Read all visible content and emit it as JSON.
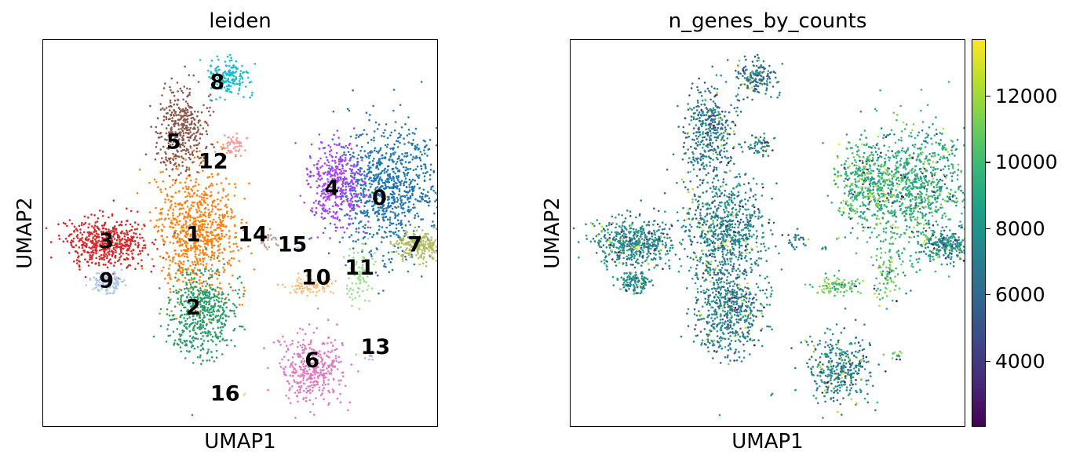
{
  "chart_data": [
    {
      "type": "scatter",
      "title": "leiden",
      "xlabel": "UMAP1",
      "ylabel": "UMAP2",
      "legend": "on-data cluster labels",
      "grid": false,
      "clusters": [
        {
          "name": "0",
          "color": "#1f77b4",
          "cx": 8.2,
          "cy": 6.4,
          "rx": 1.3,
          "ry": 1.9,
          "n": 900
        },
        {
          "name": "1",
          "color": "#ff7f0e",
          "cx": 3.4,
          "cy": 5.2,
          "rx": 1.0,
          "ry": 1.8,
          "n": 800
        },
        {
          "name": "2",
          "color": "#279e68",
          "cx": 3.5,
          "cy": 2.7,
          "rx": 0.8,
          "ry": 1.3,
          "n": 520
        },
        {
          "name": "3",
          "color": "#d62728",
          "cx": 1.1,
          "cy": 4.8,
          "rx": 1.0,
          "ry": 0.7,
          "n": 520
        },
        {
          "name": "4",
          "color": "#aa40fc",
          "cx": 6.9,
          "cy": 6.6,
          "rx": 0.7,
          "ry": 1.2,
          "n": 380
        },
        {
          "name": "5",
          "color": "#8c564b",
          "cx": 3.0,
          "cy": 8.2,
          "rx": 0.6,
          "ry": 1.3,
          "n": 380
        },
        {
          "name": "6",
          "color": "#e377c2",
          "cx": 6.3,
          "cy": 1.0,
          "rx": 0.8,
          "ry": 1.0,
          "n": 360
        },
        {
          "name": "7",
          "color": "#b5bd61",
          "cx": 9.0,
          "cy": 4.7,
          "rx": 0.6,
          "ry": 0.4,
          "n": 240
        },
        {
          "name": "8",
          "color": "#17becf",
          "cx": 4.2,
          "cy": 9.8,
          "rx": 0.5,
          "ry": 0.5,
          "n": 170
        },
        {
          "name": "9",
          "color": "#aec7e8",
          "cx": 1.1,
          "cy": 3.6,
          "rx": 0.4,
          "ry": 0.3,
          "n": 120
        },
        {
          "name": "10",
          "color": "#ffbb78",
          "cx": 6.2,
          "cy": 3.5,
          "rx": 0.6,
          "ry": 0.3,
          "n": 90
        },
        {
          "name": "11",
          "color": "#98df8a",
          "cx": 7.5,
          "cy": 3.8,
          "rx": 0.3,
          "ry": 1.0,
          "n": 90
        },
        {
          "name": "12",
          "color": "#ff9896",
          "cx": 4.3,
          "cy": 7.7,
          "rx": 0.3,
          "ry": 0.3,
          "n": 50
        },
        {
          "name": "13",
          "color": "#c5b0d5",
          "cx": 7.8,
          "cy": 1.4,
          "rx": 0.15,
          "ry": 0.15,
          "n": 12
        },
        {
          "name": "14",
          "color": "#c49c94",
          "cx": 5.2,
          "cy": 4.9,
          "rx": 0.3,
          "ry": 0.3,
          "n": 25
        },
        {
          "name": "15",
          "color": "#f7b6d2",
          "cx": 5.9,
          "cy": 4.6,
          "rx": 0.1,
          "ry": 0.1,
          "n": 6
        },
        {
          "name": "16",
          "color": "#dbdb8d",
          "cx": 4.6,
          "cy": 0.2,
          "rx": 0.05,
          "ry": 0.05,
          "n": 2
        }
      ],
      "xlim": [
        -0.5,
        9.5
      ],
      "ylim": [
        -0.8,
        10.9
      ]
    },
    {
      "type": "scatter",
      "title": "n_genes_by_counts",
      "xlabel": "UMAP1",
      "ylabel": "UMAP2",
      "colormap": "viridis",
      "colorbar_ticks": [
        4000,
        6000,
        8000,
        10000,
        12000
      ],
      "color_range": [
        2000,
        13700
      ],
      "grid": false
    }
  ]
}
